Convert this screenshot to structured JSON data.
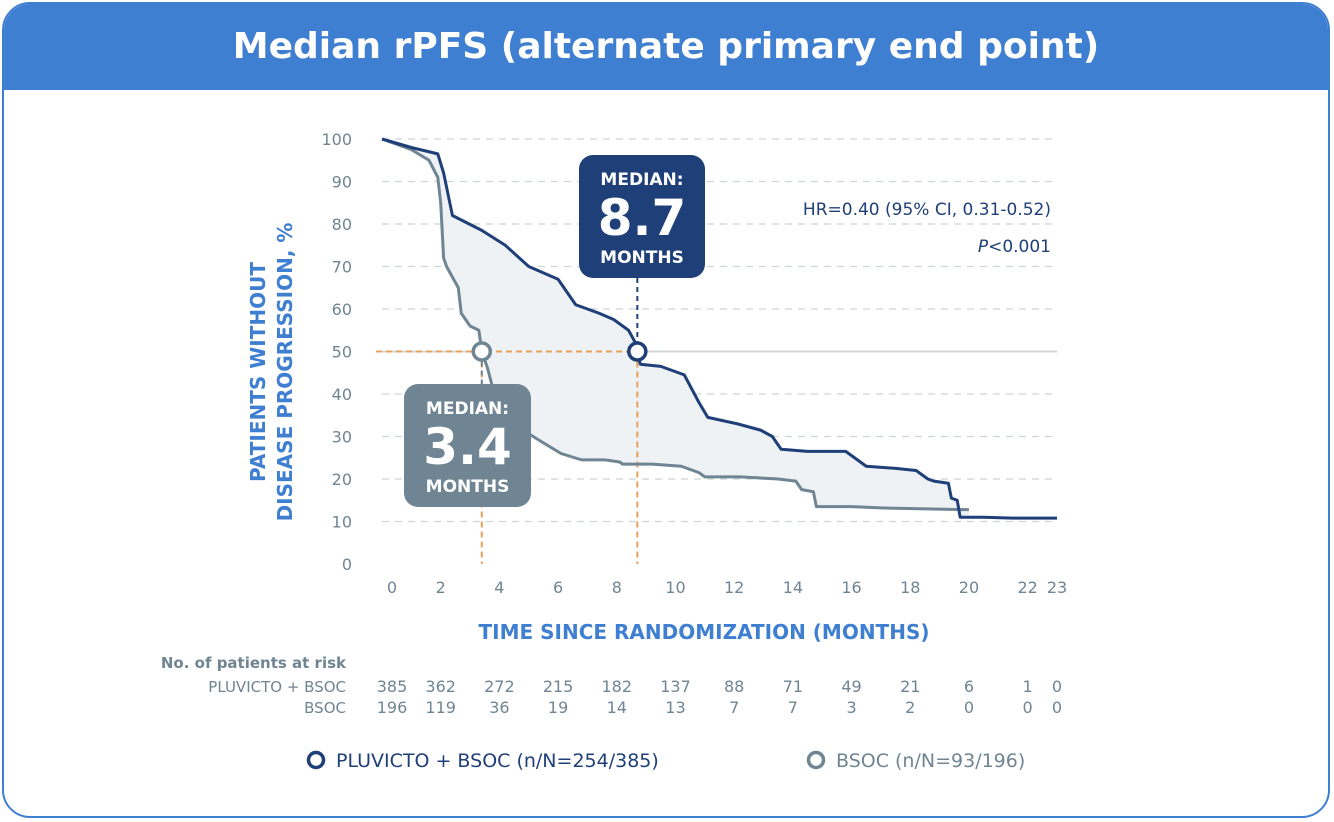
{
  "header": {
    "title": "Median rPFS (alternate primary end point)"
  },
  "colors": {
    "header_bg": "#3f7fd1",
    "pluvicto": "#1f3f78",
    "bsoc": "#6f8593",
    "reference": "#e8a15c",
    "axis_title": "#3f7fd1",
    "fill": "#eef2f4"
  },
  "chart_data": {
    "type": "line",
    "xlabel": "TIME SINCE RANDOMIZATION (MONTHS)",
    "ylabel": [
      "PATIENTS WITHOUT",
      "DISEASE PROGRESSION, %"
    ],
    "xlim": [
      0,
      23
    ],
    "ylim": [
      0,
      100
    ],
    "x_ticks": [
      0,
      2,
      4,
      6,
      8,
      10,
      12,
      14,
      16,
      18,
      20,
      22,
      23
    ],
    "y_ticks": [
      0,
      10,
      20,
      30,
      40,
      50,
      60,
      70,
      80,
      90,
      100
    ],
    "grid": "dashed horizontal",
    "reference_line_y": 50,
    "series": [
      {
        "name": "PLUVICTO + BSOC",
        "legend": "PLUVICTO + BSOC (n/N=254/385)",
        "points": [
          [
            0,
            100
          ],
          [
            1,
            98
          ],
          [
            1.9,
            96.5
          ],
          [
            2.1,
            92
          ],
          [
            2.4,
            82
          ],
          [
            3.4,
            78.5
          ],
          [
            4.2,
            75
          ],
          [
            5,
            70
          ],
          [
            6,
            67
          ],
          [
            6.6,
            61
          ],
          [
            7.4,
            59
          ],
          [
            7.9,
            57.5
          ],
          [
            8.4,
            55
          ],
          [
            8.6,
            52.5
          ],
          [
            8.7,
            50
          ],
          [
            8.8,
            47
          ],
          [
            9.5,
            46.5
          ],
          [
            10.3,
            44.5
          ],
          [
            10.8,
            38
          ],
          [
            11.1,
            34.5
          ],
          [
            12.1,
            33
          ],
          [
            12.9,
            31.5
          ],
          [
            13.3,
            30
          ],
          [
            13.6,
            27
          ],
          [
            14.5,
            26.5
          ],
          [
            15.8,
            26.5
          ],
          [
            16.1,
            25
          ],
          [
            16.5,
            23
          ],
          [
            17.5,
            22.5
          ],
          [
            18.2,
            22
          ],
          [
            18.6,
            20
          ],
          [
            18.8,
            19.5
          ],
          [
            19.3,
            19
          ],
          [
            19.4,
            15.5
          ],
          [
            19.6,
            15
          ],
          [
            19.7,
            11
          ],
          [
            20.5,
            11
          ],
          [
            21.5,
            10.8
          ],
          [
            23,
            10.8
          ]
        ]
      },
      {
        "name": "BSOC",
        "legend": "BSOC (n/N=93/196)",
        "points": [
          [
            0,
            100
          ],
          [
            1,
            97.5
          ],
          [
            1.6,
            95
          ],
          [
            1.9,
            91
          ],
          [
            2,
            85
          ],
          [
            2.1,
            72
          ],
          [
            2.2,
            70
          ],
          [
            2.6,
            65
          ],
          [
            2.7,
            59
          ],
          [
            3,
            56
          ],
          [
            3.3,
            55
          ],
          [
            3.4,
            50
          ],
          [
            3.6,
            46
          ],
          [
            3.9,
            38
          ],
          [
            4.2,
            34
          ],
          [
            4.8,
            31.5
          ],
          [
            5.5,
            28.5
          ],
          [
            6.1,
            26
          ],
          [
            6.8,
            24.5
          ],
          [
            7.6,
            24.5
          ],
          [
            8.1,
            24
          ],
          [
            8.2,
            23.5
          ],
          [
            9.2,
            23.5
          ],
          [
            10.2,
            23
          ],
          [
            10.8,
            21.5
          ],
          [
            11,
            20.5
          ],
          [
            12.2,
            20.5
          ],
          [
            13.5,
            20
          ],
          [
            14.1,
            19.5
          ],
          [
            14.3,
            17.5
          ],
          [
            14.7,
            17
          ],
          [
            14.8,
            13.5
          ],
          [
            16,
            13.5
          ],
          [
            17,
            13.2
          ],
          [
            19.8,
            12.8
          ],
          [
            20,
            12.8
          ]
        ]
      }
    ],
    "medians": [
      {
        "series": "PLUVICTO + BSOC",
        "x": 8.7,
        "y": 50,
        "label_top": "MEDIAN:",
        "value": "8.7",
        "label_bottom": "MONTHS"
      },
      {
        "series": "BSOC",
        "x": 3.4,
        "y": 50,
        "label_top": "MEDIAN:",
        "value": "3.4",
        "label_bottom": "MONTHS"
      }
    ],
    "annotations": {
      "hr": "HR=0.40 (95% CI, 0.31-0.52)",
      "p_italic": "P",
      "p_rest": "<0.001"
    },
    "at_risk": {
      "title": "No. of patients at risk",
      "rows": [
        {
          "label": "PLUVICTO + BSOC",
          "values": [
            "385",
            "362",
            "272",
            "215",
            "182",
            "137",
            "88",
            "71",
            "49",
            "21",
            "6",
            "1",
            "0"
          ]
        },
        {
          "label": "BSOC",
          "values": [
            "196",
            "119",
            "36",
            "19",
            "14",
            "13",
            "7",
            "7",
            "3",
            "2",
            "0",
            "0",
            "0"
          ]
        }
      ]
    }
  }
}
